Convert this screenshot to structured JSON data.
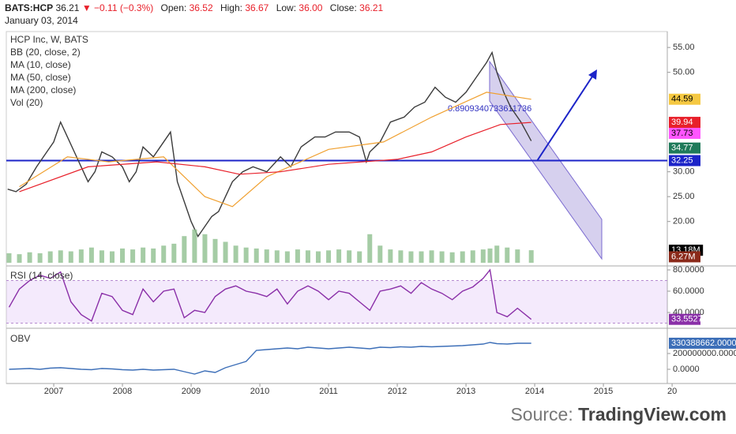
{
  "header": {
    "symbol": "BATS:HCP",
    "price": "36.21",
    "change": "▼ −0.11 (−0.3%)",
    "fields": [
      {
        "label": "Open:",
        "value": "36.52"
      },
      {
        "label": "High:",
        "value": "36.67"
      },
      {
        "label": "Low:",
        "value": "36.00"
      },
      {
        "label": "Close:",
        "value": "36.21"
      }
    ],
    "date": "January 03, 2014"
  },
  "source": {
    "prefix": "Source:",
    "site": "TradingView.com"
  },
  "chart_data": [
    {
      "type": "line",
      "title": "HCP Inc, W, BATS",
      "studies": [
        "BB (20, close, 2)",
        "MA (10, close)",
        "MA (50, close)",
        "MA (200, close)",
        "Vol (20)"
      ],
      "channel_label": "0.8909340733611736",
      "xlim": [
        2006.31,
        2015.93
      ],
      "xticks": [
        2007,
        2008,
        2009,
        2010,
        2011,
        2012,
        2013,
        2014,
        2015,
        {
          "value": 2016,
          "label": "20"
        }
      ],
      "ylim": [
        11.7,
        58.2
      ],
      "yticks": [
        {
          "value": 20,
          "label": "20.00"
        },
        {
          "value": 25,
          "label": "25.00"
        },
        {
          "value": 30,
          "label": "30.00"
        },
        {
          "value": 50,
          "label": "50.00"
        },
        {
          "value": 55,
          "label": "55.00"
        }
      ],
      "hline": {
        "value": 32.25,
        "color": "#1c24c8"
      },
      "series": [
        {
          "color": "#3b3b3b",
          "x": [
            2006.33,
            2006.45,
            2006.6,
            2006.75,
            2006.9,
            2007.0,
            2007.1,
            2007.2,
            2007.3,
            2007.4,
            2007.5,
            2007.6,
            2007.7,
            2007.85,
            2008.0,
            2008.1,
            2008.2,
            2008.3,
            2008.45,
            2008.55,
            2008.7,
            2008.8,
            2008.9,
            2009.0,
            2009.1,
            2009.2,
            2009.3,
            2009.4,
            2009.5,
            2009.6,
            2009.75,
            2009.9,
            2010.1,
            2010.3,
            2010.45,
            2010.6,
            2010.8,
            2010.95,
            2011.1,
            2011.3,
            2011.45,
            2011.55,
            2011.6,
            2011.75,
            2011.9,
            2012.1,
            2012.25,
            2012.4,
            2012.55,
            2012.7,
            2012.85,
            2013.0,
            2013.15,
            2013.3,
            2013.38,
            2013.45,
            2013.55,
            2013.65,
            2013.8,
            2013.95
          ],
          "values": [
            26.5,
            26,
            27.5,
            31,
            34,
            36,
            40,
            37,
            34,
            31,
            28,
            30,
            34,
            33,
            31,
            28,
            30,
            35,
            33,
            35,
            38,
            28,
            24,
            20,
            17,
            19,
            21,
            22,
            25,
            28,
            30,
            31,
            30,
            33,
            31,
            35,
            37,
            37,
            38,
            38,
            37,
            32,
            34,
            36,
            40,
            41,
            43,
            44,
            47,
            45,
            44,
            46,
            49,
            52,
            54,
            50,
            46,
            43,
            40,
            36.21
          ]
        },
        {
          "color": "#f0a030",
          "x": [
            2006.5,
            2007.2,
            2007.8,
            2008.6,
            2009.2,
            2009.6,
            2010.1,
            2011.0,
            2011.8,
            2012.5,
            2013.3,
            2013.95
          ],
          "values": [
            27,
            33,
            32,
            33,
            25,
            23,
            29,
            34.5,
            36,
            41,
            46,
            44.59
          ]
        },
        {
          "color": "#e8202a",
          "x": [
            2006.5,
            2007.5,
            2008.5,
            2009.2,
            2009.7,
            2010.3,
            2011.0,
            2012.0,
            2012.5,
            2013.0,
            2013.5,
            2013.95
          ],
          "values": [
            26,
            31,
            32,
            31,
            29.5,
            30,
            31.5,
            32.5,
            34,
            37,
            39.5,
            39.94
          ]
        }
      ],
      "tags": [
        {
          "value": 44.59,
          "color": "#f5c842",
          "text_color": "#000000"
        },
        {
          "value": 39.94,
          "color": "#e8202a",
          "text_color": "#ffffff"
        },
        {
          "value": 37.73,
          "color": "#ff55ff",
          "text_color": "#000000"
        },
        {
          "value": 34.77,
          "color": "#1f7a5a",
          "text_color": "#ffffff"
        },
        {
          "value": 32.25,
          "color": "#1c24c8",
          "text_color": "#ffffff"
        }
      ]
    },
    {
      "type": "bar",
      "color": "#8fbf8f",
      "ylim": [
        0,
        58
      ],
      "x": [
        2006.35,
        2006.5,
        2006.65,
        2006.8,
        2006.95,
        2007.1,
        2007.25,
        2007.4,
        2007.55,
        2007.7,
        2007.85,
        2008.0,
        2008.15,
        2008.3,
        2008.45,
        2008.6,
        2008.75,
        2008.9,
        2009.05,
        2009.2,
        2009.35,
        2009.5,
        2009.65,
        2009.8,
        2009.95,
        2010.1,
        2010.25,
        2010.4,
        2010.55,
        2010.7,
        2010.85,
        2011.0,
        2011.15,
        2011.3,
        2011.45,
        2011.6,
        2011.75,
        2011.9,
        2012.05,
        2012.2,
        2012.35,
        2012.5,
        2012.65,
        2012.8,
        2012.95,
        2013.1,
        2013.25,
        2013.35,
        2013.45,
        2013.6,
        2013.75,
        2013.95
      ],
      "values": [
        10,
        9,
        11,
        10,
        12,
        13,
        12,
        14,
        16,
        13,
        12,
        15,
        14,
        16,
        15,
        18,
        20,
        28,
        35,
        30,
        25,
        22,
        18,
        16,
        15,
        14,
        13,
        12,
        14,
        13,
        12,
        13,
        14,
        13,
        12,
        30,
        18,
        14,
        13,
        12,
        12,
        13,
        12,
        11,
        12,
        13,
        14,
        15,
        18,
        16,
        14,
        13.18
      ],
      "tags": [
        {
          "value": 13.18,
          "label": "13.18M",
          "color": "#000000",
          "text_color": "#ffffff"
        },
        {
          "value": 6.27,
          "label": "6.27M",
          "color": "#8b2a1a",
          "text_color": "#ffffff"
        }
      ]
    },
    {
      "type": "line",
      "title": "RSI (14, close)",
      "ylim": [
        27.4,
        81.5
      ],
      "bands": [
        30,
        70
      ],
      "yticks": [
        {
          "value": 40,
          "label": "40.0000"
        },
        {
          "value": 60,
          "label": "60.0000"
        },
        {
          "value": 80,
          "label": "80.0000"
        }
      ],
      "series": [
        {
          "color": "#8a2fa8",
          "x": [
            2006.35,
            2006.5,
            2006.65,
            2006.8,
            2006.95,
            2007.1,
            2007.25,
            2007.4,
            2007.55,
            2007.7,
            2007.85,
            2008.0,
            2008.15,
            2008.3,
            2008.45,
            2008.6,
            2008.75,
            2008.9,
            2009.05,
            2009.2,
            2009.35,
            2009.5,
            2009.65,
            2009.8,
            2009.95,
            2010.1,
            2010.25,
            2010.4,
            2010.55,
            2010.7,
            2010.85,
            2011.0,
            2011.15,
            2011.3,
            2011.45,
            2011.6,
            2011.75,
            2011.9,
            2012.05,
            2012.2,
            2012.35,
            2012.5,
            2012.65,
            2012.8,
            2012.95,
            2013.1,
            2013.25,
            2013.35,
            2013.45,
            2013.6,
            2013.75,
            2013.95
          ],
          "values": [
            45,
            62,
            70,
            75,
            72,
            78,
            50,
            38,
            32,
            58,
            55,
            42,
            38,
            62,
            50,
            60,
            62,
            35,
            42,
            40,
            55,
            62,
            65,
            60,
            58,
            55,
            62,
            48,
            60,
            65,
            60,
            52,
            60,
            58,
            50,
            42,
            60,
            62,
            65,
            58,
            68,
            62,
            58,
            52,
            60,
            64,
            72,
            80,
            40,
            36,
            44,
            33.5527
          ]
        }
      ],
      "tags": [
        {
          "value": 33.5527,
          "color": "#8a2fa8",
          "text_color": "#ffffff"
        }
      ]
    },
    {
      "type": "line",
      "title": "OBV",
      "ylim": [
        -150000000,
        480000000
      ],
      "yticks": [
        {
          "value": 0,
          "label": "0.0000"
        },
        {
          "value": 200000000,
          "label": "200000000.0000"
        }
      ],
      "series": [
        {
          "color": "#3d6fb8",
          "x": [
            2006.35,
            2006.5,
            2006.65,
            2006.8,
            2006.95,
            2007.1,
            2007.25,
            2007.4,
            2007.55,
            2007.7,
            2007.85,
            2008.0,
            2008.15,
            2008.3,
            2008.45,
            2008.6,
            2008.75,
            2008.9,
            2009.05,
            2009.2,
            2009.35,
            2009.5,
            2009.65,
            2009.8,
            2009.95,
            2010.1,
            2010.25,
            2010.4,
            2010.55,
            2010.7,
            2010.85,
            2011.0,
            2011.15,
            2011.3,
            2011.45,
            2011.6,
            2011.75,
            2011.9,
            2012.05,
            2012.2,
            2012.35,
            2012.5,
            2012.65,
            2012.8,
            2012.95,
            2013.1,
            2013.25,
            2013.35,
            2013.45,
            2013.6,
            2013.75,
            2013.95
          ],
          "values": [
            0,
            5000000,
            10000000,
            0,
            15000000,
            20000000,
            10000000,
            0,
            -5000000,
            10000000,
            5000000,
            -5000000,
            -10000000,
            0,
            -10000000,
            -5000000,
            0,
            -30000000,
            -60000000,
            -20000000,
            -40000000,
            20000000,
            60000000,
            100000000,
            240000000,
            250000000,
            260000000,
            270000000,
            260000000,
            280000000,
            270000000,
            260000000,
            270000000,
            280000000,
            270000000,
            260000000,
            280000000,
            275000000,
            285000000,
            280000000,
            290000000,
            285000000,
            290000000,
            295000000,
            300000000,
            310000000,
            320000000,
            340000000,
            325000000,
            320000000,
            330000000,
            330388662
          ]
        }
      ],
      "tags": [
        {
          "value": 330388662,
          "label": "330388662.0000",
          "color": "#3d6fb8",
          "text_color": "#ffffff"
        }
      ]
    }
  ]
}
